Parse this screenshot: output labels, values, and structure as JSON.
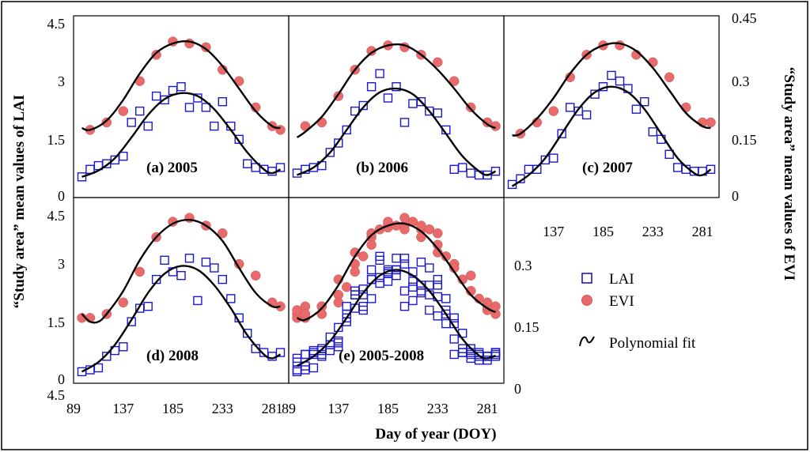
{
  "chart_data": {
    "type": "scatter",
    "xlabel": "Day of year (DOY)",
    "ylabel_left": "“Study area” mean values of LAI",
    "ylabel_right": "“Study area” mean values of EVI",
    "x_ticks": [
      "89",
      "137",
      "185",
      "233",
      "281"
    ],
    "lai_ticks": [
      "0",
      "1.5",
      "3",
      "4.5"
    ],
    "evi_ticks": [
      "0",
      "0.15",
      "0.3",
      "0.45"
    ],
    "extra_tick_label": "4.5",
    "xlim": [
      89,
      297
    ],
    "lai_ylim": [
      0,
      4.5
    ],
    "evi_ylim": [
      0,
      0.45
    ],
    "legend": {
      "lai_label": "LAI",
      "evi_label": "EVI",
      "fit_label": "Polynomial fit"
    },
    "colors": {
      "lai": "#1a1acc",
      "evi": "#e86a6a",
      "fit": "#000000"
    },
    "panels": [
      {
        "title": "(a) 2005",
        "lai_doy": [
          97,
          105,
          113,
          121,
          129,
          137,
          145,
          153,
          161,
          169,
          177,
          185,
          193,
          201,
          209,
          217,
          225,
          233,
          241,
          249,
          257,
          265,
          273,
          281,
          289
        ],
        "lai": [
          0.55,
          0.75,
          0.85,
          0.9,
          1.0,
          1.1,
          2.0,
          2.3,
          1.9,
          2.7,
          2.6,
          2.85,
          2.95,
          2.4,
          2.65,
          2.4,
          1.9,
          2.55,
          1.9,
          1.55,
          0.9,
          0.8,
          0.75,
          0.7,
          0.8
        ],
        "evi_doy": [
          105,
          121,
          137,
          153,
          169,
          185,
          201,
          217,
          233,
          249,
          265,
          281,
          289
        ],
        "evi": [
          0.18,
          0.2,
          0.23,
          0.31,
          0.38,
          0.415,
          0.41,
          0.4,
          0.34,
          0.31,
          0.24,
          0.19,
          0.18
        ],
        "lai_fit": [
          [
            97,
            0.55
          ],
          [
            113,
            0.72
          ],
          [
            129,
            1.05
          ],
          [
            145,
            1.6
          ],
          [
            161,
            2.2
          ],
          [
            177,
            2.62
          ],
          [
            193,
            2.78
          ],
          [
            209,
            2.7
          ],
          [
            225,
            2.35
          ],
          [
            241,
            1.8
          ],
          [
            257,
            1.2
          ],
          [
            273,
            0.75
          ],
          [
            281,
            0.65
          ],
          [
            289,
            0.75
          ]
        ],
        "evi_fit": [
          [
            97,
            0.185
          ],
          [
            105,
            0.18
          ],
          [
            121,
            0.205
          ],
          [
            137,
            0.26
          ],
          [
            153,
            0.33
          ],
          [
            169,
            0.385
          ],
          [
            185,
            0.41
          ],
          [
            201,
            0.415
          ],
          [
            217,
            0.395
          ],
          [
            233,
            0.35
          ],
          [
            249,
            0.29
          ],
          [
            265,
            0.23
          ],
          [
            281,
            0.19
          ],
          [
            289,
            0.185
          ]
        ]
      },
      {
        "title": "(b) 2006",
        "lai_doy": [
          97,
          105,
          113,
          121,
          129,
          137,
          145,
          153,
          161,
          169,
          177,
          185,
          193,
          201,
          209,
          217,
          225,
          233,
          241,
          249,
          257,
          265,
          273,
          281,
          289
        ],
        "lai": [
          0.65,
          0.75,
          0.8,
          0.85,
          1.2,
          1.45,
          1.8,
          2.3,
          2.45,
          2.95,
          3.3,
          2.65,
          2.95,
          2.0,
          2.5,
          2.55,
          2.3,
          2.25,
          1.8,
          0.75,
          0.8,
          0.65,
          0.6,
          0.6,
          0.7
        ],
        "evi_doy": [
          105,
          121,
          137,
          153,
          169,
          185,
          201,
          217,
          233,
          249,
          265,
          281,
          289
        ],
        "evi": [
          0.19,
          0.2,
          0.27,
          0.34,
          0.39,
          0.405,
          0.4,
          0.38,
          0.36,
          0.31,
          0.24,
          0.2,
          0.19
        ],
        "lai_fit": [
          [
            97,
            0.6
          ],
          [
            113,
            0.8
          ],
          [
            129,
            1.2
          ],
          [
            145,
            1.8
          ],
          [
            161,
            2.4
          ],
          [
            177,
            2.8
          ],
          [
            193,
            2.9
          ],
          [
            209,
            2.75
          ],
          [
            225,
            2.3
          ],
          [
            241,
            1.7
          ],
          [
            257,
            1.1
          ],
          [
            273,
            0.7
          ],
          [
            281,
            0.6
          ],
          [
            289,
            0.7
          ]
        ],
        "evi_fit": [
          [
            97,
            0.16
          ],
          [
            105,
            0.175
          ],
          [
            121,
            0.215
          ],
          [
            137,
            0.275
          ],
          [
            153,
            0.34
          ],
          [
            169,
            0.385
          ],
          [
            185,
            0.405
          ],
          [
            201,
            0.405
          ],
          [
            217,
            0.38
          ],
          [
            233,
            0.34
          ],
          [
            249,
            0.29
          ],
          [
            265,
            0.235
          ],
          [
            281,
            0.195
          ],
          [
            289,
            0.185
          ]
        ]
      },
      {
        "title": "(c) 2007",
        "lai_doy": [
          97,
          105,
          113,
          121,
          129,
          137,
          145,
          153,
          161,
          169,
          177,
          185,
          193,
          201,
          209,
          217,
          225,
          233,
          241,
          249,
          257,
          265,
          273,
          281,
          289
        ],
        "lai": [
          0.35,
          0.5,
          0.75,
          0.75,
          1.0,
          1.05,
          1.7,
          2.4,
          2.3,
          2.2,
          2.75,
          2.95,
          3.25,
          3.1,
          2.9,
          2.35,
          2.55,
          1.75,
          1.55,
          1.15,
          0.8,
          0.75,
          0.7,
          0.7,
          0.75
        ],
        "evi_doy": [
          105,
          121,
          137,
          153,
          169,
          185,
          201,
          217,
          233,
          249,
          265,
          281,
          289
        ],
        "evi": [
          0.17,
          0.2,
          0.23,
          0.32,
          0.38,
          0.405,
          0.405,
          0.38,
          0.36,
          0.32,
          0.24,
          0.2,
          0.2
        ],
        "lai_fit": [
          [
            97,
            0.3
          ],
          [
            113,
            0.6
          ],
          [
            129,
            1.05
          ],
          [
            145,
            1.7
          ],
          [
            161,
            2.35
          ],
          [
            177,
            2.8
          ],
          [
            193,
            2.95
          ],
          [
            209,
            2.8
          ],
          [
            225,
            2.35
          ],
          [
            241,
            1.7
          ],
          [
            257,
            1.05
          ],
          [
            273,
            0.65
          ],
          [
            281,
            0.6
          ],
          [
            289,
            0.75
          ]
        ],
        "evi_fit": [
          [
            97,
            0.165
          ],
          [
            105,
            0.17
          ],
          [
            121,
            0.21
          ],
          [
            137,
            0.265
          ],
          [
            153,
            0.33
          ],
          [
            169,
            0.38
          ],
          [
            185,
            0.405
          ],
          [
            201,
            0.41
          ],
          [
            217,
            0.39
          ],
          [
            233,
            0.345
          ],
          [
            249,
            0.285
          ],
          [
            265,
            0.225
          ],
          [
            281,
            0.19
          ],
          [
            289,
            0.185
          ]
        ]
      },
      {
        "title": "(d) 2008",
        "lai_doy": [
          97,
          105,
          113,
          121,
          129,
          137,
          145,
          153,
          161,
          169,
          177,
          185,
          193,
          201,
          209,
          217,
          225,
          233,
          241,
          249,
          257,
          265,
          273,
          281,
          289
        ],
        "lai": [
          0.3,
          0.35,
          0.4,
          0.7,
          0.85,
          0.95,
          1.6,
          1.95,
          2.0,
          2.7,
          3.2,
          2.9,
          2.8,
          3.25,
          2.15,
          3.15,
          3.0,
          2.7,
          2.2,
          1.7,
          1.3,
          0.9,
          0.8,
          0.7,
          0.8
        ],
        "evi_doy": [
          97,
          105,
          121,
          137,
          153,
          169,
          185,
          201,
          217,
          233,
          249,
          265,
          281,
          289
        ],
        "evi": [
          0.17,
          0.17,
          0.18,
          0.21,
          0.29,
          0.38,
          0.42,
          0.43,
          0.41,
          0.39,
          0.31,
          0.28,
          0.21,
          0.2
        ],
        "lai_fit": [
          [
            97,
            0.3
          ],
          [
            113,
            0.55
          ],
          [
            129,
            1.0
          ],
          [
            145,
            1.65
          ],
          [
            161,
            2.35
          ],
          [
            177,
            2.85
          ],
          [
            193,
            3.05
          ],
          [
            209,
            2.95
          ],
          [
            225,
            2.55
          ],
          [
            241,
            1.95
          ],
          [
            257,
            1.25
          ],
          [
            273,
            0.75
          ],
          [
            281,
            0.65
          ],
          [
            289,
            0.75
          ]
        ],
        "evi_fit": [
          [
            97,
            0.18
          ],
          [
            105,
            0.16
          ],
          [
            113,
            0.16
          ],
          [
            121,
            0.18
          ],
          [
            137,
            0.24
          ],
          [
            153,
            0.32
          ],
          [
            169,
            0.38
          ],
          [
            185,
            0.415
          ],
          [
            201,
            0.425
          ],
          [
            217,
            0.41
          ],
          [
            233,
            0.37
          ],
          [
            249,
            0.3
          ],
          [
            265,
            0.235
          ],
          [
            281,
            0.2
          ],
          [
            289,
            0.2
          ]
        ]
      },
      {
        "title": "(e) 2005-2008",
        "lai_doy": [
          97,
          97,
          97,
          97,
          105,
          105,
          105,
          105,
          113,
          113,
          113,
          113,
          121,
          121,
          121,
          121,
          129,
          129,
          129,
          129,
          137,
          137,
          137,
          137,
          145,
          145,
          145,
          145,
          153,
          153,
          153,
          153,
          161,
          161,
          161,
          161,
          169,
          169,
          169,
          169,
          177,
          177,
          177,
          177,
          185,
          185,
          185,
          185,
          193,
          193,
          193,
          193,
          201,
          201,
          201,
          201,
          209,
          209,
          209,
          209,
          217,
          217,
          217,
          217,
          225,
          225,
          225,
          225,
          233,
          233,
          233,
          233,
          241,
          241,
          241,
          241,
          249,
          249,
          249,
          249,
          257,
          257,
          257,
          257,
          265,
          265,
          265,
          265,
          273,
          273,
          273,
          273,
          281,
          281,
          281,
          281,
          289,
          289,
          289,
          289
        ],
        "lai": [
          0.55,
          0.65,
          0.35,
          0.3,
          0.75,
          0.75,
          0.35,
          0.45,
          0.85,
          0.8,
          0.75,
          0.4,
          0.9,
          0.85,
          0.75,
          0.7,
          1.0,
          1.2,
          1.0,
          0.85,
          1.1,
          1.45,
          1.05,
          0.95,
          2.0,
          1.8,
          1.7,
          1.6,
          2.3,
          2.3,
          2.4,
          1.95,
          1.9,
          2.45,
          2.3,
          2.0,
          2.7,
          2.95,
          2.2,
          2.7,
          2.6,
          3.3,
          2.75,
          3.2,
          2.85,
          2.65,
          2.95,
          2.9,
          2.95,
          2.95,
          3.25,
          2.8,
          2.4,
          2.0,
          3.1,
          3.25,
          2.65,
          2.5,
          2.9,
          2.15,
          2.4,
          2.55,
          2.35,
          3.15,
          1.9,
          2.3,
          2.55,
          3.0,
          2.55,
          2.25,
          1.75,
          2.7,
          1.9,
          1.8,
          1.55,
          2.2,
          1.55,
          0.75,
          1.15,
          1.7,
          0.9,
          0.8,
          0.8,
          1.3,
          0.8,
          0.65,
          0.75,
          0.9,
          0.75,
          0.6,
          0.7,
          0.8,
          0.7,
          0.6,
          0.7,
          0.7,
          0.8,
          0.7,
          0.75,
          0.8
        ],
        "evi_doy": [
          97,
          97,
          97,
          105,
          105,
          105,
          121,
          121,
          121,
          137,
          137,
          137,
          145,
          153,
          153,
          153,
          161,
          169,
          169,
          169,
          177,
          185,
          185,
          185,
          193,
          201,
          201,
          201,
          209,
          217,
          217,
          217,
          225,
          233,
          233,
          233,
          241,
          249,
          249,
          249,
          257,
          265,
          265,
          265,
          273,
          281,
          281,
          281,
          289,
          289
        ],
        "evi": [
          0.18,
          0.17,
          0.19,
          0.17,
          0.2,
          0.18,
          0.2,
          0.2,
          0.18,
          0.23,
          0.27,
          0.21,
          0.25,
          0.31,
          0.34,
          0.29,
          0.33,
          0.38,
          0.39,
          0.36,
          0.4,
          0.415,
          0.405,
          0.42,
          0.41,
          0.41,
          0.4,
          0.43,
          0.42,
          0.4,
          0.38,
          0.41,
          0.4,
          0.34,
          0.36,
          0.39,
          0.33,
          0.31,
          0.31,
          0.3,
          0.27,
          0.24,
          0.24,
          0.28,
          0.22,
          0.19,
          0.2,
          0.21,
          0.18,
          0.2
        ],
        "lai_fit": [
          [
            97,
            0.45
          ],
          [
            113,
            0.7
          ],
          [
            129,
            1.1
          ],
          [
            145,
            1.7
          ],
          [
            161,
            2.35
          ],
          [
            177,
            2.8
          ],
          [
            193,
            2.95
          ],
          [
            209,
            2.8
          ],
          [
            225,
            2.4
          ],
          [
            241,
            1.8
          ],
          [
            257,
            1.15
          ],
          [
            273,
            0.72
          ],
          [
            281,
            0.65
          ],
          [
            289,
            0.72
          ]
        ],
        "evi_fit": [
          [
            97,
            0.17
          ],
          [
            105,
            0.165
          ],
          [
            121,
            0.195
          ],
          [
            137,
            0.255
          ],
          [
            153,
            0.33
          ],
          [
            169,
            0.385
          ],
          [
            185,
            0.41
          ],
          [
            201,
            0.415
          ],
          [
            217,
            0.395
          ],
          [
            233,
            0.35
          ],
          [
            249,
            0.29
          ],
          [
            265,
            0.23
          ],
          [
            281,
            0.195
          ],
          [
            289,
            0.185
          ]
        ]
      }
    ]
  }
}
